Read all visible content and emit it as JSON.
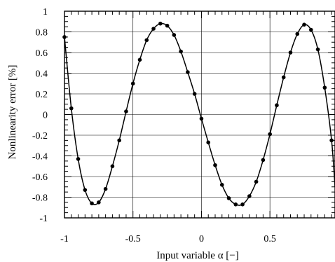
{
  "chart_data": {
    "type": "line",
    "xlabel": "Input variable  α [−]",
    "ylabel": "Nonlinearity error [%]",
    "xlim": [
      -1,
      0.975
    ],
    "ylim": [
      -1,
      1
    ],
    "grid": true,
    "x_ticks": [
      -1,
      -0.5,
      0,
      0.5
    ],
    "x_tick_labels": [
      "-1",
      "-0.5",
      "0",
      "0.5"
    ],
    "y_ticks": [
      1,
      0.8,
      0.6,
      0.4,
      0.2,
      0,
      -0.2,
      -0.4,
      -0.6,
      -0.8,
      -1
    ],
    "y_tick_labels": [
      "1",
      "0.8",
      "0.6",
      "0.4",
      "0.2",
      "0",
      "-0.2",
      "-0.4",
      "-0.6",
      "-0.8",
      "-1"
    ],
    "series": [
      {
        "x": [
          -1.0,
          -0.95,
          -0.9,
          -0.85,
          -0.8,
          -0.75,
          -0.7,
          -0.65,
          -0.6,
          -0.55,
          -0.5,
          -0.45,
          -0.4,
          -0.35,
          -0.3,
          -0.25,
          -0.2,
          -0.15,
          -0.1,
          -0.05,
          0.0,
          0.05,
          0.1,
          0.15,
          0.2,
          0.25,
          0.3,
          0.35,
          0.4,
          0.45,
          0.5,
          0.55,
          0.6,
          0.65,
          0.7,
          0.75,
          0.8,
          0.85,
          0.9,
          0.95
        ],
        "y": [
          0.75,
          0.06,
          -0.43,
          -0.73,
          -0.86,
          -0.85,
          -0.72,
          -0.5,
          -0.25,
          0.03,
          0.3,
          0.53,
          0.72,
          0.83,
          0.88,
          0.86,
          0.77,
          0.61,
          0.41,
          0.2,
          -0.04,
          -0.27,
          -0.49,
          -0.68,
          -0.81,
          -0.87,
          -0.87,
          -0.79,
          -0.65,
          -0.44,
          -0.19,
          0.09,
          0.36,
          0.6,
          0.78,
          0.87,
          0.82,
          0.63,
          0.26,
          -0.25
        ],
        "curve_end": {
          "x": 0.975,
          "y": -0.7
        }
      }
    ]
  }
}
